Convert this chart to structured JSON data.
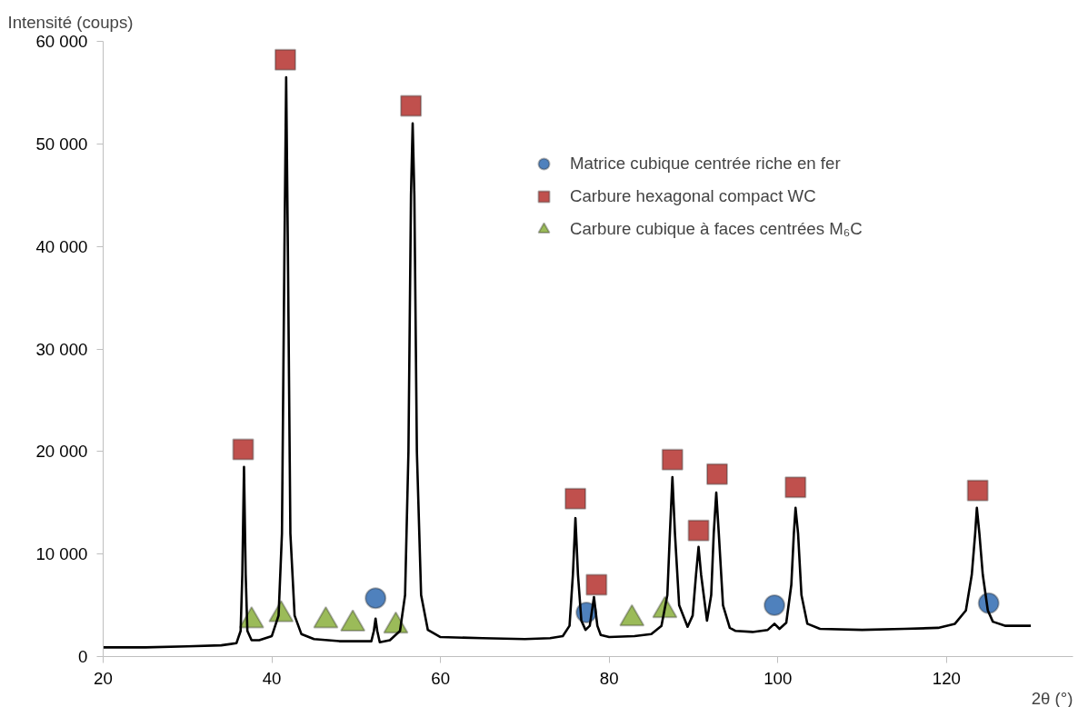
{
  "chart_data": {
    "type": "line",
    "ylabel": "Intensité (coups)",
    "xlabel": "2θ (°)",
    "xlim": [
      20,
      135
    ],
    "xticks": [
      20,
      40,
      60,
      80,
      100,
      120
    ],
    "ylim": [
      0,
      60000
    ],
    "yticks": [
      {
        "value": 0,
        "label": "0"
      },
      {
        "value": 10000,
        "label": "10 000"
      },
      {
        "value": 20000,
        "label": "20 000"
      },
      {
        "value": 30000,
        "label": "30 000"
      },
      {
        "value": 40000,
        "label": "40 000"
      },
      {
        "value": 50000,
        "label": "50 000"
      },
      {
        "value": 60000,
        "label": "60 000"
      }
    ],
    "grid": false,
    "legend": "top right",
    "line_style": "solid",
    "series": [
      {
        "color": "#000000",
        "x": [
          20,
          25,
          30,
          34,
          35.8,
          36.3,
          36.5,
          36.7,
          36.9,
          37.1,
          37.6,
          38.5,
          40,
          40.8,
          41.2,
          41.5,
          41.7,
          41.9,
          42.2,
          42.7,
          43.5,
          45,
          48,
          50,
          51.8,
          52.1,
          52.3,
          52.5,
          52.8,
          54,
          55.2,
          55.8,
          56.2,
          56.5,
          56.7,
          56.9,
          57.2,
          57.7,
          58.5,
          60,
          65,
          70,
          73,
          74.5,
          75.3,
          75.7,
          76.0,
          76.3,
          76.7,
          77.2,
          77.7,
          78.2,
          78.6,
          79,
          80,
          83,
          85,
          86.2,
          86.9,
          87.2,
          87.5,
          87.8,
          88.3,
          89.3,
          89.9,
          90.3,
          90.6,
          90.9,
          91.6,
          92.1,
          92.4,
          92.7,
          93.0,
          93.5,
          94.3,
          95,
          97,
          98.8,
          99.6,
          100.2,
          101,
          101.6,
          101.9,
          102.1,
          102.4,
          102.8,
          103.5,
          105,
          110,
          115,
          119,
          121,
          122.3,
          123,
          123.4,
          123.6,
          123.9,
          124.3,
          124.9,
          125.5,
          127,
          130
        ],
        "values": [
          900,
          900,
          1000,
          1100,
          1300,
          2500,
          8000,
          18500,
          8000,
          2500,
          1600,
          1600,
          2000,
          4000,
          12000,
          40000,
          56500,
          40000,
          12000,
          4000,
          2200,
          1700,
          1500,
          1500,
          1500,
          2500,
          3700,
          2500,
          1400,
          1600,
          2500,
          6000,
          20000,
          45000,
          52000,
          45000,
          20000,
          6000,
          2600,
          1900,
          1800,
          1700,
          1800,
          2000,
          3000,
          8000,
          13500,
          8000,
          3500,
          2600,
          3000,
          5800,
          3000,
          2100,
          1900,
          2000,
          2200,
          3000,
          6000,
          12000,
          17500,
          12000,
          5000,
          2900,
          4000,
          8000,
          10700,
          8000,
          3500,
          6000,
          12000,
          16000,
          12000,
          5000,
          2800,
          2500,
          2400,
          2600,
          3200,
          2700,
          3300,
          7000,
          12000,
          14500,
          12000,
          6000,
          3200,
          2700,
          2600,
          2700,
          2800,
          3200,
          4500,
          8000,
          12000,
          14500,
          12000,
          8000,
          4500,
          3400,
          3000,
          3000
        ]
      },
      {
        "type": "scatter",
        "name": "Matrice cubique centrée riche en fer",
        "color": "#4f81bd",
        "marker": "circle",
        "x": [
          52.3,
          77.3,
          99.6,
          125.0
        ],
        "values": [
          5700,
          4300,
          5000,
          5200
        ]
      },
      {
        "type": "scatter",
        "name": "Carbure hexagonal compact WC",
        "color": "#c0504d",
        "marker": "square",
        "x": [
          36.6,
          41.6,
          56.5,
          76.0,
          78.5,
          87.5,
          90.6,
          92.8,
          102.1,
          123.7
        ],
        "values": [
          20200,
          58200,
          53700,
          15400,
          7000,
          19200,
          12300,
          17800,
          16500,
          16200
        ]
      },
      {
        "type": "scatter",
        "name": "Carbure cubique à faces centrées M₆C",
        "color": "#9bbb59",
        "marker": "triangle",
        "x": [
          37.6,
          41.1,
          46.4,
          49.6,
          54.7,
          82.7,
          86.6
        ],
        "values": [
          3500,
          4100,
          3500,
          3200,
          3000,
          3700,
          4500
        ]
      }
    ]
  }
}
